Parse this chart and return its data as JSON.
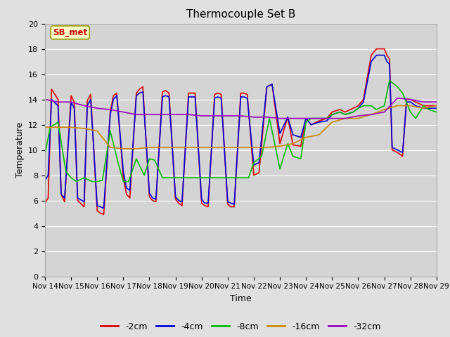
{
  "title": "Thermocouple Set B",
  "xlabel": "Time",
  "ylabel": "Temperature",
  "xlim": [
    0,
    15
  ],
  "ylim": [
    0,
    20
  ],
  "yticks": [
    0,
    2,
    4,
    6,
    8,
    10,
    12,
    14,
    16,
    18,
    20
  ],
  "xtick_labels": [
    "Nov 14",
    "Nov 15",
    "Nov 16",
    "Nov 17",
    "Nov 18",
    "Nov 19",
    "Nov 20",
    "Nov 21",
    "Nov 22",
    "Nov 23",
    "Nov 24",
    "Nov 25",
    "Nov 26",
    "Nov 27",
    "Nov 28",
    "Nov 29"
  ],
  "annotation_text": "SB_met",
  "annotation_color": "#cc0000",
  "annotation_bg": "#ffffcc",
  "annotation_border": "#999900",
  "fig_bg_color": "#e0e0e0",
  "plot_bg_color": "#d4d4d4",
  "grid_color": "#ffffff",
  "title_fontsize": 11,
  "axis_label_fontsize": 9,
  "tick_fontsize": 8,
  "legend_fontsize": 9,
  "series_order": [
    "-2cm",
    "-4cm",
    "-8cm",
    "-16cm",
    "-32cm"
  ],
  "series": {
    "-2cm": {
      "color": "#dd0000",
      "x": [
        0.0,
        0.12,
        0.25,
        0.5,
        0.62,
        0.75,
        1.0,
        1.12,
        1.25,
        1.5,
        1.62,
        1.75,
        2.0,
        2.12,
        2.25,
        2.5,
        2.62,
        2.75,
        3.0,
        3.12,
        3.25,
        3.5,
        3.62,
        3.75,
        4.0,
        4.12,
        4.25,
        4.5,
        4.62,
        4.75,
        5.0,
        5.12,
        5.25,
        5.5,
        5.62,
        5.75,
        6.0,
        6.12,
        6.25,
        6.5,
        6.62,
        6.75,
        7.0,
        7.12,
        7.25,
        7.5,
        7.62,
        7.75,
        8.0,
        8.2,
        8.5,
        8.7,
        9.0,
        9.3,
        9.5,
        9.8,
        10.0,
        10.2,
        10.5,
        10.8,
        11.0,
        11.3,
        11.5,
        11.8,
        12.0,
        12.2,
        12.5,
        12.7,
        13.0,
        13.1,
        13.2,
        13.3,
        13.5,
        13.7,
        13.85,
        14.0,
        14.2,
        14.5,
        14.7,
        15.0
      ],
      "y": [
        5.8,
        6.2,
        14.8,
        14.0,
        6.5,
        5.9,
        14.3,
        13.8,
        6.0,
        5.5,
        13.9,
        14.4,
        5.2,
        5.0,
        4.9,
        13.0,
        14.3,
        14.5,
        7.8,
        6.5,
        6.2,
        14.5,
        14.8,
        15.0,
        6.3,
        6.0,
        5.9,
        14.6,
        14.7,
        14.5,
        6.1,
        5.8,
        5.6,
        14.5,
        14.5,
        14.5,
        5.8,
        5.6,
        5.5,
        14.4,
        14.5,
        14.4,
        5.7,
        5.5,
        5.5,
        14.5,
        14.5,
        14.4,
        8.0,
        8.2,
        15.0,
        15.2,
        10.5,
        12.6,
        10.4,
        10.3,
        12.5,
        12.0,
        12.3,
        12.5,
        13.0,
        13.2,
        13.0,
        13.3,
        13.5,
        14.0,
        17.5,
        18.0,
        18.0,
        17.5,
        17.2,
        10.0,
        9.8,
        9.5,
        14.0,
        14.0,
        13.8,
        13.5,
        13.5,
        13.5
      ]
    },
    "-4cm": {
      "color": "#0000dd",
      "x": [
        0.0,
        0.12,
        0.25,
        0.5,
        0.62,
        0.75,
        1.0,
        1.12,
        1.25,
        1.5,
        1.62,
        1.75,
        2.0,
        2.12,
        2.25,
        2.5,
        2.62,
        2.75,
        3.0,
        3.12,
        3.25,
        3.5,
        3.62,
        3.75,
        4.0,
        4.12,
        4.25,
        4.5,
        4.62,
        4.75,
        5.0,
        5.12,
        5.25,
        5.5,
        5.62,
        5.75,
        6.0,
        6.12,
        6.25,
        6.5,
        6.62,
        6.75,
        7.0,
        7.12,
        7.25,
        7.5,
        7.62,
        7.75,
        8.0,
        8.2,
        8.5,
        8.7,
        9.0,
        9.3,
        9.5,
        9.8,
        10.0,
        10.2,
        10.5,
        10.8,
        11.0,
        11.3,
        11.5,
        11.8,
        12.0,
        12.2,
        12.5,
        12.7,
        13.0,
        13.1,
        13.2,
        13.3,
        13.5,
        13.7,
        13.85,
        14.0,
        14.2,
        14.5,
        14.7,
        15.0
      ],
      "y": [
        7.6,
        8.0,
        14.0,
        13.5,
        6.5,
        6.2,
        13.8,
        13.3,
        6.2,
        5.9,
        13.5,
        14.0,
        5.6,
        5.5,
        5.4,
        12.8,
        14.0,
        14.3,
        8.3,
        7.0,
        6.8,
        14.3,
        14.5,
        14.6,
        6.6,
        6.2,
        6.1,
        14.2,
        14.3,
        14.2,
        6.3,
        6.0,
        5.9,
        14.2,
        14.2,
        14.2,
        6.1,
        5.8,
        5.8,
        14.1,
        14.2,
        14.1,
        5.9,
        5.8,
        5.7,
        14.2,
        14.2,
        14.1,
        8.8,
        9.0,
        15.0,
        15.2,
        11.3,
        12.6,
        11.2,
        11.0,
        12.5,
        12.0,
        12.2,
        12.3,
        12.8,
        13.0,
        12.8,
        13.0,
        13.3,
        13.8,
        17.0,
        17.5,
        17.5,
        17.0,
        16.8,
        10.2,
        10.0,
        9.8,
        13.8,
        13.8,
        13.5,
        13.3,
        13.3,
        13.3
      ]
    },
    "-8cm": {
      "color": "#00bb00",
      "x": [
        0.0,
        0.2,
        0.5,
        0.8,
        1.0,
        1.2,
        1.5,
        1.8,
        2.0,
        2.2,
        2.5,
        2.8,
        3.0,
        3.2,
        3.5,
        3.8,
        4.0,
        4.2,
        4.5,
        4.8,
        5.0,
        5.2,
        5.5,
        5.8,
        6.0,
        6.2,
        6.5,
        6.8,
        7.0,
        7.2,
        7.5,
        7.8,
        8.0,
        8.3,
        8.6,
        9.0,
        9.3,
        9.5,
        9.8,
        10.0,
        10.2,
        10.5,
        10.8,
        11.0,
        11.3,
        11.5,
        11.8,
        12.0,
        12.2,
        12.5,
        12.7,
        13.0,
        13.2,
        13.5,
        13.7,
        14.0,
        14.2,
        14.5,
        14.7,
        15.0
      ],
      "y": [
        9.7,
        11.8,
        12.2,
        8.3,
        7.8,
        7.5,
        7.8,
        7.5,
        7.5,
        7.6,
        11.5,
        9.0,
        7.5,
        7.5,
        9.3,
        8.0,
        9.3,
        9.2,
        7.8,
        7.8,
        7.8,
        7.8,
        7.8,
        7.8,
        7.8,
        7.8,
        7.8,
        7.8,
        7.8,
        7.8,
        7.8,
        7.8,
        9.0,
        9.5,
        12.5,
        8.5,
        10.5,
        9.5,
        9.3,
        12.2,
        12.5,
        12.5,
        12.5,
        12.8,
        13.0,
        12.8,
        13.0,
        13.3,
        13.5,
        13.5,
        13.2,
        13.5,
        15.5,
        15.0,
        14.5,
        13.0,
        12.5,
        13.5,
        13.2,
        13.0
      ]
    },
    "-16cm": {
      "color": "#cc8800",
      "x": [
        0.0,
        0.5,
        1.0,
        1.5,
        2.0,
        2.5,
        3.0,
        3.5,
        4.0,
        4.5,
        5.0,
        5.5,
        6.0,
        6.5,
        7.0,
        7.5,
        8.0,
        8.5,
        9.0,
        9.5,
        10.0,
        10.5,
        11.0,
        11.5,
        12.0,
        12.5,
        13.0,
        13.5,
        14.0,
        14.5,
        15.0
      ],
      "y": [
        11.8,
        11.8,
        11.8,
        11.7,
        11.5,
        10.2,
        10.1,
        10.1,
        10.2,
        10.2,
        10.2,
        10.2,
        10.2,
        10.2,
        10.2,
        10.2,
        10.2,
        10.2,
        10.3,
        10.5,
        11.0,
        11.2,
        12.2,
        12.5,
        12.5,
        12.8,
        13.2,
        13.5,
        13.5,
        13.3,
        13.5
      ]
    },
    "-32cm": {
      "color": "#9900bb",
      "x": [
        0.0,
        0.5,
        1.0,
        1.5,
        2.0,
        2.5,
        3.0,
        3.5,
        4.0,
        4.5,
        5.0,
        5.5,
        6.0,
        6.5,
        7.0,
        7.5,
        8.0,
        8.5,
        9.0,
        9.5,
        10.0,
        10.5,
        11.0,
        11.5,
        12.0,
        12.5,
        13.0,
        13.5,
        14.0,
        14.5,
        15.0
      ],
      "y": [
        14.0,
        13.8,
        13.8,
        13.5,
        13.3,
        13.2,
        13.0,
        12.8,
        12.8,
        12.8,
        12.8,
        12.8,
        12.7,
        12.7,
        12.7,
        12.7,
        12.6,
        12.6,
        12.5,
        12.5,
        12.5,
        12.5,
        12.5,
        12.5,
        12.7,
        12.8,
        13.0,
        14.1,
        14.0,
        13.8,
        13.8
      ]
    }
  }
}
